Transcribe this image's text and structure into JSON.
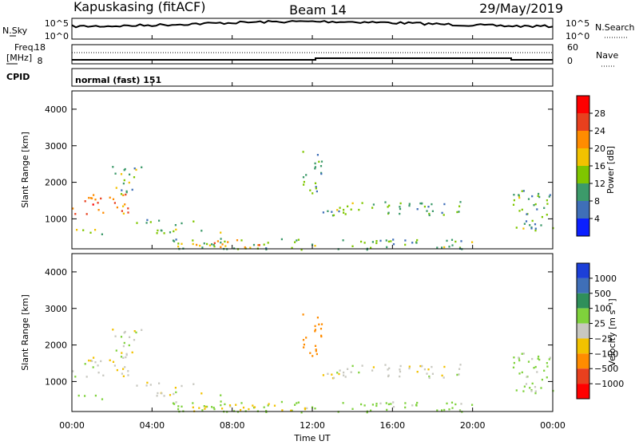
{
  "header": {
    "station": "Kapuskasing (fitACF)",
    "beam": "Beam 14",
    "date": "29/May/2019"
  },
  "sky_panel": {
    "left_label": "N.Sky",
    "right_label": "N.Search",
    "left_ticks": [
      "10^5",
      "10^0"
    ],
    "right_ticks": [
      "10^5",
      "10^0"
    ]
  },
  "freq_panel": {
    "left_label_1": "Freq.",
    "left_label_2": "[MHz]",
    "right_label": "Nave",
    "left_ticks": [
      "18",
      "8"
    ],
    "right_ticks": [
      "60",
      "0"
    ]
  },
  "cpid_panel": {
    "label": "CPID",
    "mode": "normal (fast) 151"
  },
  "x_axis": {
    "label": "Time UT",
    "ticks": [
      "00:00",
      "04:00",
      "08:00",
      "12:00",
      "16:00",
      "20:00",
      "00:00"
    ]
  },
  "power_panel": {
    "ylabel": "Slant Range [km]",
    "yticks": [
      "4000",
      "3000",
      "2000",
      "1000"
    ],
    "colorbar_label": "Power [dB]",
    "colorbar_ticks": [
      "28",
      "24",
      "20",
      "16",
      "12",
      "8",
      "4"
    ],
    "colors": [
      "#ff0000",
      "#e8401e",
      "#ff8c00",
      "#f2c200",
      "#7fc600",
      "#3c9a6a",
      "#3f6fb8",
      "#0b1fff"
    ]
  },
  "velocity_panel": {
    "ylabel": "Slant Range [km]",
    "yticks": [
      "4000",
      "3000",
      "2000",
      "1000"
    ],
    "colorbar_label": "Velocity [m s⁻¹]",
    "colorbar_ticks": [
      "1000",
      "500",
      "100",
      "25",
      "−25",
      "−100",
      "−500",
      "−1000"
    ],
    "colors": [
      "#1c3fd8",
      "#3f6fb8",
      "#2f8f5a",
      "#7fd23c",
      "#c8c8c0",
      "#f2c200",
      "#ff8c00",
      "#e8401e",
      "#ff0000"
    ]
  },
  "chart_data": {
    "type": "heatmap",
    "x_unit": "hours UT",
    "xlim": [
      0,
      24
    ],
    "ylim": [
      180,
      4500
    ],
    "ground_scatter_color": "#c8c8c0",
    "power_echoes": [
      {
        "t0": 0.0,
        "t1": 2.8,
        "r0": 1150,
        "r1": 1700,
        "dB": 22
      },
      {
        "t0": 2.0,
        "t1": 3.5,
        "r0": 1700,
        "r1": 2450,
        "dB": 10
      },
      {
        "t0": 0.2,
        "t1": 1.5,
        "r0": 550,
        "r1": 800,
        "dB": 10
      },
      {
        "t0": 3.2,
        "t1": 6.5,
        "r0": 850,
        "r1": 1000,
        "dB": 10
      },
      {
        "t0": 4.2,
        "t1": 9.0,
        "r0": 620,
        "r1": 750,
        "dB": 12
      },
      {
        "t0": 5.0,
        "t1": 20.0,
        "r0": 180,
        "r1": 480,
        "dB": 10
      },
      {
        "t0": 6.0,
        "t1": 9.5,
        "r0": 200,
        "r1": 450,
        "dB": 18
      },
      {
        "t0": 12.5,
        "t1": 19.5,
        "r0": 1100,
        "r1": 1500,
        "dB": 10
      },
      {
        "t0": 11.5,
        "t1": 12.5,
        "r0": 1700,
        "r1": 2900,
        "dB": 8
      },
      {
        "t0": 22.0,
        "t1": 24.0,
        "r0": 600,
        "r1": 1800,
        "dB": 10
      }
    ],
    "velocity_echoes": [
      {
        "t0": 0.0,
        "t1": 2.8,
        "r0": 1150,
        "r1": 1700,
        "v": 0
      },
      {
        "t0": 2.0,
        "t1": 3.5,
        "r0": 1700,
        "r1": 2450,
        "v": 0
      },
      {
        "t0": 0.3,
        "t1": 1.5,
        "r0": 500,
        "r1": 700,
        "v": 60
      },
      {
        "t0": 3.2,
        "t1": 6.5,
        "r0": 850,
        "r1": 1000,
        "v": 0
      },
      {
        "t0": 4.2,
        "t1": 9.0,
        "r0": 620,
        "r1": 750,
        "v": 0
      },
      {
        "t0": 5.0,
        "t1": 20.0,
        "r0": 180,
        "r1": 480,
        "v": 60
      },
      {
        "t0": 6.0,
        "t1": 12.0,
        "r0": 200,
        "r1": 420,
        "v": -60
      },
      {
        "t0": 12.5,
        "t1": 19.5,
        "r0": 1100,
        "r1": 1500,
        "v": 0
      },
      {
        "t0": 11.5,
        "t1": 12.5,
        "r0": 1700,
        "r1": 2900,
        "v": -200
      },
      {
        "t0": 22.0,
        "t1": 24.0,
        "r0": 600,
        "r1": 1800,
        "v": 50
      }
    ]
  }
}
